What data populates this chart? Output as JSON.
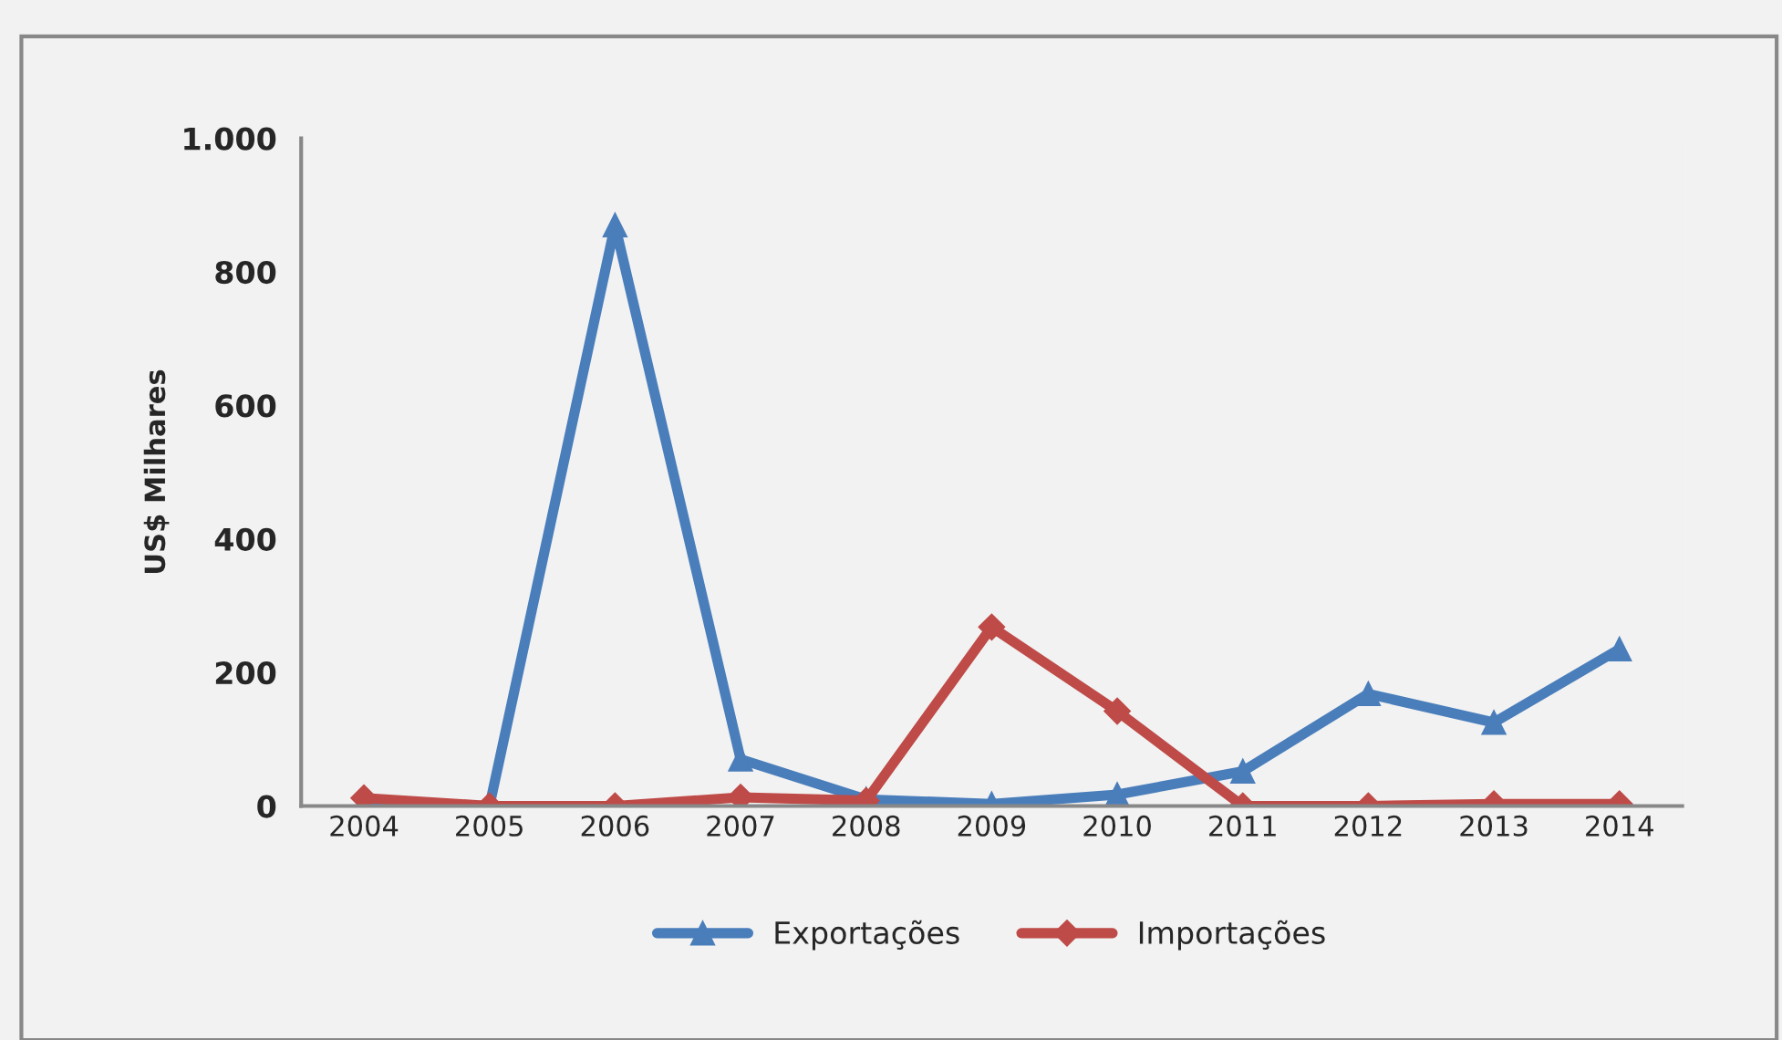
{
  "chart_data": {
    "type": "line",
    "ylabel": "US$ Milhares",
    "categories": [
      "2004",
      "2005",
      "2006",
      "2007",
      "2008",
      "2009",
      "2010",
      "2011",
      "2012",
      "2013",
      "2014"
    ],
    "series": [
      {
        "name": "Exportações",
        "color": "#4a7ebb",
        "marker": "triangle",
        "values": [
          5,
          0,
          870,
          70,
          10,
          3,
          17,
          52,
          168,
          125,
          235
        ]
      },
      {
        "name": "Importações",
        "color": "#be4b48",
        "marker": "diamond",
        "values": [
          12,
          0,
          0,
          13,
          8,
          268,
          142,
          0,
          0,
          3,
          3
        ]
      }
    ],
    "ylim": [
      0,
      1000
    ],
    "yticks": [
      0,
      200,
      400,
      600,
      800,
      {
        "value": 1000,
        "label": "1.000"
      }
    ],
    "grid": false,
    "legend": "bottom",
    "line_style": "solid"
  }
}
